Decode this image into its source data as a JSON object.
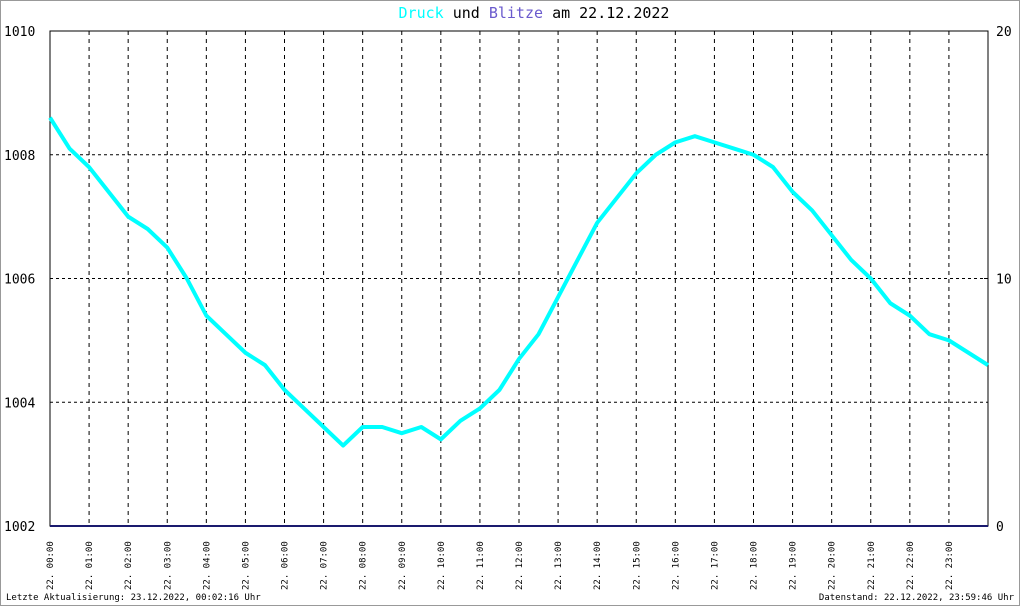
{
  "chart_data": {
    "type": "line",
    "title_joiner": "und",
    "title_date": "am 22.12.2022",
    "footer_left": "Letzte Aktualisierung: 23.12.2022, 00:02:16 Uhr",
    "footer_right": "Datenstand: 22.12.2022, 23:59:46 Uhr",
    "xlim": [
      0,
      24
    ],
    "xticks": [
      {
        "value": 0,
        "label": "22. 00:00"
      },
      {
        "value": 1,
        "label": "22. 01:00"
      },
      {
        "value": 2,
        "label": "22. 02:00"
      },
      {
        "value": 3,
        "label": "22. 03:00"
      },
      {
        "value": 4,
        "label": "22. 04:00"
      },
      {
        "value": 5,
        "label": "22. 05:00"
      },
      {
        "value": 6,
        "label": "22. 06:00"
      },
      {
        "value": 7,
        "label": "22. 07:00"
      },
      {
        "value": 8,
        "label": "22. 08:00"
      },
      {
        "value": 9,
        "label": "22. 09:00"
      },
      {
        "value": 10,
        "label": "22. 10:00"
      },
      {
        "value": 11,
        "label": "22. 11:00"
      },
      {
        "value": 12,
        "label": "22. 12:00"
      },
      {
        "value": 13,
        "label": "22. 13:00"
      },
      {
        "value": 14,
        "label": "22. 14:00"
      },
      {
        "value": 15,
        "label": "22. 15:00"
      },
      {
        "value": 16,
        "label": "22. 16:00"
      },
      {
        "value": 17,
        "label": "22. 17:00"
      },
      {
        "value": 18,
        "label": "22. 18:00"
      },
      {
        "value": 19,
        "label": "22. 19:00"
      },
      {
        "value": 20,
        "label": "22. 20:00"
      },
      {
        "value": 21,
        "label": "22. 21:00"
      },
      {
        "value": 22,
        "label": "22. 22:00"
      },
      {
        "value": 23,
        "label": "22. 23:00"
      }
    ],
    "ylim": [
      1002,
      1010
    ],
    "yticks": [
      1002,
      1004,
      1006,
      1008,
      1010
    ],
    "y2lim": [
      0,
      20
    ],
    "y2ticks": [
      0,
      10,
      20
    ],
    "grid": true,
    "series": [
      {
        "name": "Druck",
        "color": "#00ffff",
        "x": [
          0,
          0.5,
          1,
          1.5,
          2,
          2.5,
          3,
          3.5,
          4,
          4.5,
          5,
          5.5,
          6,
          6.5,
          7,
          7.5,
          8,
          8.5,
          9,
          9.5,
          10,
          10.5,
          11,
          11.5,
          12,
          12.5,
          13,
          13.5,
          14,
          14.5,
          15,
          15.5,
          16,
          16.5,
          17,
          17.5,
          18,
          18.5,
          19,
          19.5,
          20,
          20.5,
          21,
          21.5,
          22,
          22.5,
          23,
          23.5,
          24
        ],
        "values": [
          1008.6,
          1008.1,
          1007.8,
          1007.4,
          1007.0,
          1006.8,
          1006.5,
          1006.0,
          1005.4,
          1005.1,
          1004.8,
          1004.6,
          1004.2,
          1003.9,
          1003.6,
          1003.3,
          1003.6,
          1003.6,
          1003.5,
          1003.6,
          1003.4,
          1003.7,
          1003.9,
          1004.2,
          1004.7,
          1005.1,
          1005.7,
          1006.3,
          1006.9,
          1007.3,
          1007.7,
          1008.0,
          1008.2,
          1008.3,
          1008.2,
          1008.1,
          1008.0,
          1007.8,
          1007.4,
          1007.1,
          1006.7,
          1006.3,
          1006.0,
          1005.6,
          1005.4,
          1005.1,
          1005.0,
          1004.8,
          1004.6
        ]
      },
      {
        "name": "Blitze",
        "color": "#6a5acd",
        "axis": "y2",
        "line_color": "#1a1a6e",
        "x": [
          0,
          24
        ],
        "values": [
          0,
          0
        ]
      }
    ]
  }
}
